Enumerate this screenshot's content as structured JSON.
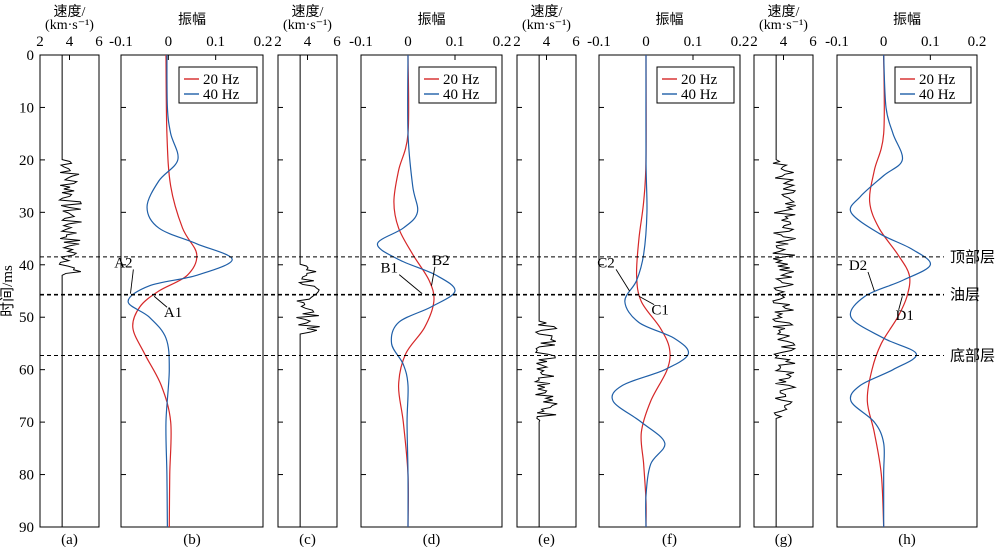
{
  "figure": {
    "ylabel": "时间/ms",
    "y_ticks": [
      "0",
      "10",
      "20",
      "30",
      "40",
      "50",
      "60",
      "70",
      "80",
      "90"
    ],
    "horizon_labels": [
      "顶部层",
      "油层",
      "底部层"
    ]
  },
  "colors": {
    "f20": "#d62728",
    "f40": "#1f5fa8",
    "velocity": "#000000",
    "axis": "#000000"
  },
  "chart_data": [
    {
      "id": "a",
      "type": "line",
      "kind": "velocity",
      "title_line1": "速度/",
      "title_line2": "(km·s⁻¹)",
      "x_tick_labels": [
        "2",
        "4",
        "6"
      ],
      "xlim": [
        2,
        6
      ],
      "ylim": [
        0,
        90
      ],
      "panel_label": "(a)",
      "perturb_range": [
        20,
        42
      ]
    },
    {
      "id": "b",
      "type": "line",
      "kind": "amplitude",
      "title": "振幅",
      "x_tick_labels": [
        "-0.1",
        "0",
        "0.1",
        "0.2"
      ],
      "xlim": [
        -0.1,
        0.2
      ],
      "ylim": [
        0,
        90
      ],
      "panel_label": "(b)",
      "legend": [
        "20 Hz",
        "40 Hz"
      ],
      "series": [
        {
          "name": "20 Hz",
          "points": [
            [
              0,
              -0.005
            ],
            [
              15,
              -0.003
            ],
            [
              25,
              0.005
            ],
            [
              33,
              0.03
            ],
            [
              38,
              0.06
            ],
            [
              42,
              0.04
            ],
            [
              45,
              -0.02
            ],
            [
              48,
              -0.06
            ],
            [
              52,
              -0.075
            ],
            [
              57,
              -0.05
            ],
            [
              63,
              -0.015
            ],
            [
              70,
              0.005
            ],
            [
              80,
              0.003
            ],
            [
              90,
              0.002
            ]
          ]
        },
        {
          "name": "40 Hz",
          "points": [
            [
              0,
              -0.003
            ],
            [
              10,
              -0.002
            ],
            [
              15,
              0.005
            ],
            [
              20,
              0.02
            ],
            [
              24,
              -0.02
            ],
            [
              29,
              -0.045
            ],
            [
              33,
              -0.02
            ],
            [
              36,
              0.06
            ],
            [
              39,
              0.135
            ],
            [
              42,
              0.06
            ],
            [
              44,
              -0.04
            ],
            [
              47,
              -0.085
            ],
            [
              50,
              -0.04
            ],
            [
              54,
              -0.005
            ],
            [
              60,
              0.002
            ],
            [
              70,
              -0.005
            ],
            [
              80,
              -0.003
            ],
            [
              90,
              -0.002
            ]
          ]
        }
      ],
      "annotations": [
        {
          "text": "A2",
          "x": -0.095,
          "y": 40.5,
          "tx": -0.08,
          "ty": 45.5
        },
        {
          "text": "A1",
          "x": 0.01,
          "y": 50.0,
          "tx": -0.03,
          "ty": 46.0
        }
      ]
    },
    {
      "id": "c",
      "type": "line",
      "kind": "velocity",
      "title_line1": "速度/",
      "title_line2": "(km·s⁻¹)",
      "x_tick_labels": [
        "2",
        "4",
        "6"
      ],
      "xlim": [
        2,
        6
      ],
      "ylim": [
        0,
        90
      ],
      "panel_label": "(c)",
      "perturb_range": [
        40,
        53
      ]
    },
    {
      "id": "d",
      "type": "line",
      "kind": "amplitude",
      "title": "振幅",
      "x_tick_labels": [
        "-0.1",
        "0",
        "0.1",
        "0.2"
      ],
      "xlim": [
        -0.1,
        0.2
      ],
      "ylim": [
        0,
        90
      ],
      "panel_label": "(d)",
      "legend": [
        "20 Hz",
        "40 Hz"
      ],
      "series": [
        {
          "name": "20 Hz",
          "points": [
            [
              0,
              0.0
            ],
            [
              15,
              0.0
            ],
            [
              22,
              -0.02
            ],
            [
              28,
              -0.03
            ],
            [
              33,
              -0.02
            ],
            [
              38,
              0.01
            ],
            [
              43,
              0.045
            ],
            [
              47,
              0.055
            ],
            [
              52,
              0.035
            ],
            [
              57,
              -0.005
            ],
            [
              63,
              -0.02
            ],
            [
              70,
              -0.01
            ],
            [
              80,
              0.0
            ],
            [
              90,
              0.0
            ]
          ]
        },
        {
          "name": "40 Hz",
          "points": [
            [
              0,
              0.0
            ],
            [
              15,
              0.0
            ],
            [
              25,
              0.01
            ],
            [
              30,
              0.02
            ],
            [
              33,
              -0.01
            ],
            [
              36,
              -0.065
            ],
            [
              39,
              -0.02
            ],
            [
              42,
              0.06
            ],
            [
              45,
              0.1
            ],
            [
              48,
              0.05
            ],
            [
              51,
              -0.02
            ],
            [
              55,
              -0.035
            ],
            [
              59,
              -0.01
            ],
            [
              63,
              0.0
            ],
            [
              70,
              -0.002
            ],
            [
              80,
              0.0
            ],
            [
              90,
              0.0
            ]
          ]
        }
      ],
      "annotations": [
        {
          "text": "B1",
          "x": -0.04,
          "y": 41.5,
          "tx": 0.03,
          "ty": 45.5
        },
        {
          "text": "B2",
          "x": 0.07,
          "y": 40.0,
          "tx": 0.05,
          "ty": 44.0
        }
      ]
    },
    {
      "id": "e",
      "type": "line",
      "kind": "velocity",
      "title_line1": "速度/",
      "title_line2": "(km·s⁻¹)",
      "x_tick_labels": [
        "2",
        "4",
        "6"
      ],
      "xlim": [
        2,
        6
      ],
      "ylim": [
        0,
        90
      ],
      "panel_label": "(e)",
      "perturb_range": [
        51,
        70
      ]
    },
    {
      "id": "f",
      "type": "line",
      "kind": "amplitude",
      "title": "振幅",
      "x_tick_labels": [
        "-0.1",
        "0",
        "0.1",
        "0.2"
      ],
      "xlim": [
        -0.1,
        0.2
      ],
      "ylim": [
        0,
        90
      ],
      "panel_label": "(f)",
      "legend": [
        "20 Hz",
        "40 Hz"
      ],
      "series": [
        {
          "name": "20 Hz",
          "points": [
            [
              0,
              0.0
            ],
            [
              20,
              0.0
            ],
            [
              28,
              -0.005
            ],
            [
              35,
              -0.015
            ],
            [
              42,
              -0.02
            ],
            [
              47,
              -0.01
            ],
            [
              52,
              0.03
            ],
            [
              56,
              0.05
            ],
            [
              60,
              0.045
            ],
            [
              66,
              0.01
            ],
            [
              72,
              -0.01
            ],
            [
              78,
              -0.005
            ],
            [
              85,
              0.0
            ],
            [
              90,
              0.0
            ]
          ]
        },
        {
          "name": "40 Hz",
          "points": [
            [
              0,
              0.0
            ],
            [
              20,
              0.0
            ],
            [
              30,
              0.002
            ],
            [
              38,
              -0.005
            ],
            [
              43,
              -0.02
            ],
            [
              47,
              -0.045
            ],
            [
              51,
              -0.015
            ],
            [
              54,
              0.06
            ],
            [
              57,
              0.09
            ],
            [
              60,
              0.04
            ],
            [
              63,
              -0.05
            ],
            [
              66,
              -0.07
            ],
            [
              70,
              -0.01
            ],
            [
              74,
              0.04
            ],
            [
              78,
              0.01
            ],
            [
              84,
              0.0
            ],
            [
              90,
              0.0
            ]
          ]
        }
      ],
      "annotations": [
        {
          "text": "C2",
          "x": -0.085,
          "y": 40.5,
          "tx": -0.035,
          "ty": 45.0
        },
        {
          "text": "C1",
          "x": 0.03,
          "y": 49.5,
          "tx": -0.015,
          "ty": 46.0
        }
      ]
    },
    {
      "id": "g",
      "type": "line",
      "kind": "velocity",
      "title_line1": "速度/",
      "title_line2": "(km·s⁻¹)",
      "x_tick_labels": [
        "2",
        "4",
        "6"
      ],
      "xlim": [
        2,
        6
      ],
      "ylim": [
        0,
        90
      ],
      "panel_label": "(g)",
      "perturb_range": [
        20,
        69
      ]
    },
    {
      "id": "h",
      "type": "line",
      "kind": "amplitude",
      "title": "振幅",
      "x_tick_labels": [
        "-0.1",
        "0",
        "0.1",
        "0.2"
      ],
      "xlim": [
        -0.1,
        0.2
      ],
      "ylim": [
        0,
        90
      ],
      "panel_label": "(h)",
      "legend": [
        "20 Hz",
        "40 Hz"
      ],
      "series": [
        {
          "name": "20 Hz",
          "points": [
            [
              0,
              0.0
            ],
            [
              15,
              0.0
            ],
            [
              22,
              -0.02
            ],
            [
              28,
              -0.03
            ],
            [
              33,
              -0.01
            ],
            [
              38,
              0.03
            ],
            [
              42,
              0.055
            ],
            [
              46,
              0.05
            ],
            [
              50,
              0.03
            ],
            [
              55,
              -0.005
            ],
            [
              60,
              -0.025
            ],
            [
              66,
              -0.035
            ],
            [
              72,
              -0.02
            ],
            [
              80,
              -0.005
            ],
            [
              90,
              0.0
            ]
          ]
        },
        {
          "name": "40 Hz",
          "points": [
            [
              0,
              0.0
            ],
            [
              10,
              0.005
            ],
            [
              15,
              0.02
            ],
            [
              20,
              0.04
            ],
            [
              23,
              0.0
            ],
            [
              27,
              -0.05
            ],
            [
              30,
              -0.07
            ],
            [
              34,
              -0.01
            ],
            [
              37,
              0.06
            ],
            [
              40,
              0.1
            ],
            [
              43,
              0.04
            ],
            [
              46,
              -0.04
            ],
            [
              50,
              -0.07
            ],
            [
              54,
              0.0
            ],
            [
              57,
              0.07
            ],
            [
              60,
              0.02
            ],
            [
              63,
              -0.05
            ],
            [
              66,
              -0.07
            ],
            [
              70,
              -0.02
            ],
            [
              74,
              0.0
            ],
            [
              80,
              0.0
            ],
            [
              90,
              0.0
            ]
          ]
        }
      ],
      "annotations": [
        {
          "text": "D2",
          "x": -0.055,
          "y": 41.0,
          "tx": -0.02,
          "ty": 45.0
        },
        {
          "text": "D1",
          "x": 0.045,
          "y": 50.5,
          "tx": 0.04,
          "ty": 46.0
        }
      ]
    }
  ],
  "horizons": [
    {
      "label": "顶部层",
      "t": 38.5
    },
    {
      "label": "油层",
      "t": 45.7
    },
    {
      "label": "底部层",
      "t": 57.3
    }
  ]
}
